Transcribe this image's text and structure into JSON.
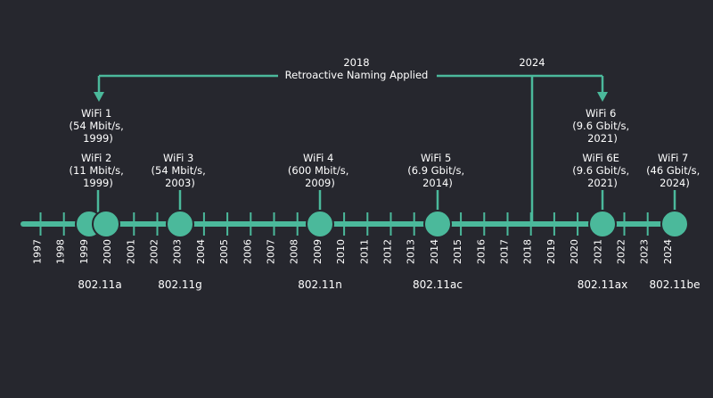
{
  "timeline": {
    "years": [
      "1997",
      "1998",
      "1999",
      "2000",
      "2001",
      "2002",
      "2003",
      "2004",
      "2005",
      "2006",
      "2007",
      "2008",
      "2009",
      "2010",
      "2011",
      "2012",
      "2013",
      "2014",
      "2015",
      "2016",
      "2017",
      "2018",
      "2019",
      "2020",
      "2021",
      "2022",
      "2023",
      "2024"
    ],
    "colors": {
      "background": "#26272e",
      "accent": "#4bb99b",
      "text": "#ffffff"
    }
  },
  "annotations": {
    "naming_year": "2018",
    "naming_label": "Retroactive Naming Applied",
    "wifi6_year": "2024"
  },
  "generations": [
    {
      "lines": [
        "WiFi 1",
        "(54 Mbit/s,",
        "1999)"
      ]
    },
    {
      "lines": [
        "WiFi 2",
        "(11 Mbit/s,",
        "1999)"
      ]
    },
    {
      "lines": [
        "WiFi 3",
        "(54 Mbit/s,",
        "2003)"
      ]
    },
    {
      "lines": [
        "WiFi 4",
        "(600 Mbit/s,",
        "2009)"
      ]
    },
    {
      "lines": [
        "WiFi 5",
        "(6.9 Gbit/s,",
        "2014)"
      ]
    },
    {
      "lines": [
        "WiFi 6",
        "(9.6 Gbit/s,",
        "2021)"
      ]
    },
    {
      "lines": [
        "WiFi 6E",
        "(9.6 Gbit/s,",
        "2021)"
      ]
    },
    {
      "lines": [
        "WiFi 7",
        "(46 Gbit/s,",
        "2024)"
      ]
    }
  ],
  "standards": [
    "802.11a",
    "802.11g",
    "802.11n",
    "802.11ac",
    "802.11ax",
    "802.11be"
  ]
}
